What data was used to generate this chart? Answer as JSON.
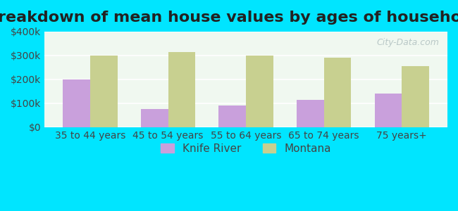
{
  "title": "Breakdown of mean house values by ages of householders",
  "categories": [
    "35 to 44 years",
    "45 to 54 years",
    "55 to 64 years",
    "65 to 74 years",
    "75 years+"
  ],
  "knife_river": [
    200000,
    75000,
    90000,
    115000,
    140000
  ],
  "montana": [
    300000,
    315000,
    300000,
    290000,
    255000
  ],
  "knife_river_color": "#c9a0dc",
  "montana_color": "#c8d090",
  "background_outer": "#00e5ff",
  "background_inner": "#f0f8f0",
  "ylim": [
    0,
    400000
  ],
  "yticks": [
    0,
    100000,
    200000,
    300000,
    400000
  ],
  "ytick_labels": [
    "$0",
    "$100k",
    "$200k",
    "$300k",
    "$400k"
  ],
  "bar_width": 0.35,
  "legend_knife_river": "Knife River",
  "legend_montana": "Montana",
  "title_fontsize": 16,
  "tick_fontsize": 10,
  "legend_fontsize": 11
}
